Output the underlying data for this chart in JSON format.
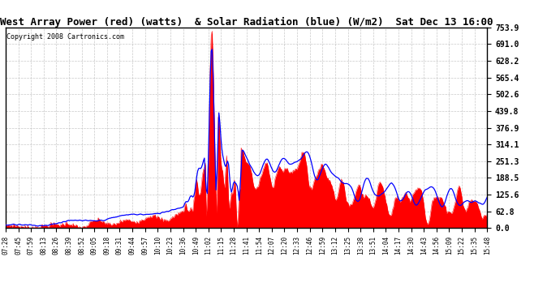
{
  "title": "West Array Power (red) (watts)  & Solar Radiation (blue) (W/m2)  Sat Dec 13 16:00",
  "copyright": "Copyright 2008 Cartronics.com",
  "y_max": 753.9,
  "y_ticks": [
    0.0,
    62.8,
    125.6,
    188.5,
    251.3,
    314.1,
    376.9,
    439.8,
    502.6,
    565.4,
    628.2,
    691.0,
    753.9
  ],
  "x_labels": [
    "07:28",
    "07:45",
    "07:59",
    "08:13",
    "08:26",
    "08:39",
    "08:52",
    "09:05",
    "09:18",
    "09:31",
    "09:44",
    "09:57",
    "10:10",
    "10:23",
    "10:36",
    "10:49",
    "11:02",
    "11:15",
    "11:28",
    "11:41",
    "11:54",
    "12:07",
    "12:20",
    "12:33",
    "12:46",
    "12:59",
    "13:12",
    "13:25",
    "13:38",
    "13:51",
    "14:04",
    "14:17",
    "14:30",
    "14:43",
    "14:56",
    "15:09",
    "15:22",
    "15:35",
    "15:48"
  ],
  "background_color": "#ffffff",
  "plot_bg_color": "#ffffff",
  "grid_color": "#bbbbbb",
  "red_color": "#ff0000",
  "blue_color": "#0000ff",
  "title_fontsize": 9,
  "copyright_fontsize": 6
}
